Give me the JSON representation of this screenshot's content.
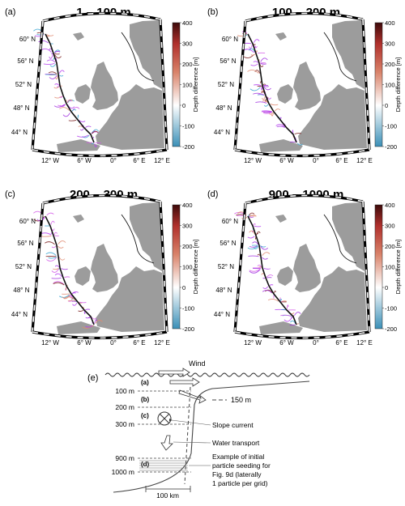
{
  "panels": [
    {
      "label": "(a)",
      "title": "1 – 100 m",
      "seed": 3
    },
    {
      "label": "(b)",
      "title": "100 – 200 m",
      "seed": 7
    },
    {
      "label": "(c)",
      "title": "200 – 300 m",
      "seed": 11
    },
    {
      "label": "(d)",
      "title": "900 – 1000 m",
      "seed": 17
    }
  ],
  "map_axes": {
    "lat_labels": [
      "60° N",
      "56° N",
      "52° N",
      "48° N",
      "44° N"
    ],
    "lon_labels": [
      "12° W",
      "6° W",
      "0°",
      "6° E",
      "12° E"
    ]
  },
  "colorbar": {
    "label": "Depth difference [m]",
    "ticks": [
      "400",
      "300",
      "200",
      "100",
      "0",
      "-100",
      "-200"
    ],
    "range": [
      -200,
      400
    ],
    "colors": [
      "#3a8fb7",
      "#ffffff",
      "#d9836a",
      "#b0302c",
      "#3d0a0a"
    ]
  },
  "schematic": {
    "label": "(e)",
    "wind": "Wind",
    "depths": [
      "100 m",
      "200 m",
      "300 m",
      "900 m",
      "1000 m"
    ],
    "layers": [
      "(a)",
      "(b)",
      "(c)",
      "(d)"
    ],
    "shelf_depth": "150 m",
    "annotations": [
      "Slope current",
      "Water transport",
      "Example of initial",
      "particle seeding for",
      "Fig. 9d (laterally",
      "1 particle per grid)"
    ],
    "scale": "100 km"
  }
}
